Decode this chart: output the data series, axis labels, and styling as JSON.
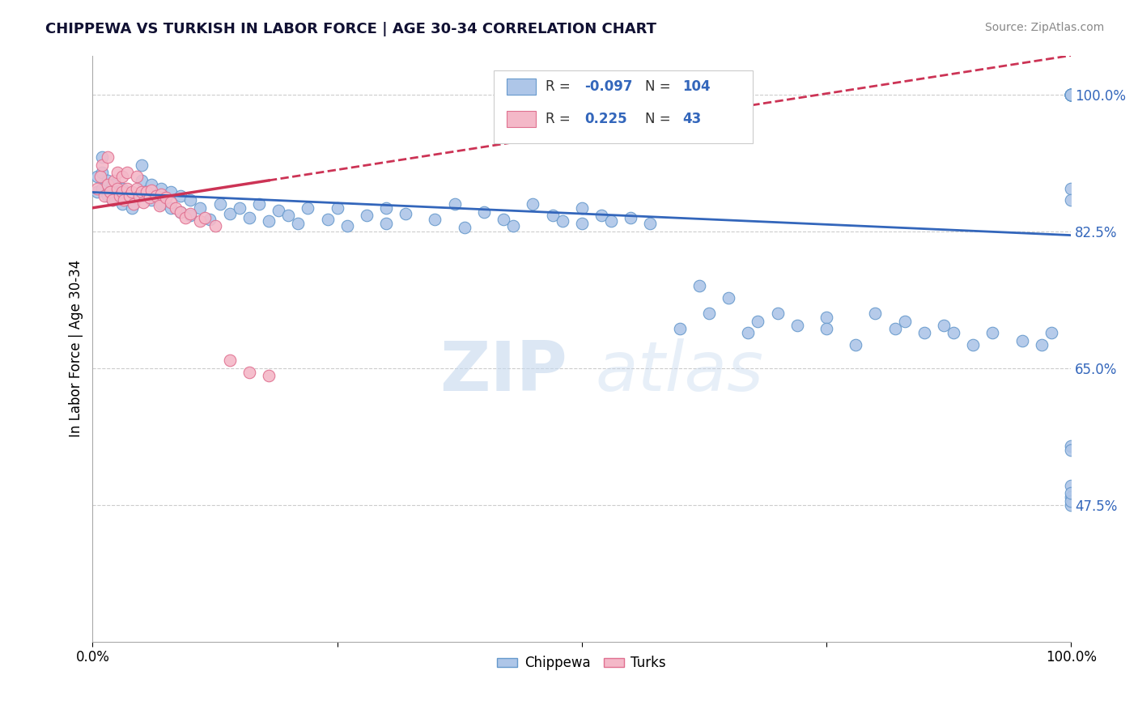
{
  "title": "CHIPPEWA VS TURKISH IN LABOR FORCE | AGE 30-34 CORRELATION CHART",
  "source_text": "Source: ZipAtlas.com",
  "ylabel": "In Labor Force | Age 30-34",
  "legend_r": [
    -0.097,
    0.225
  ],
  "legend_n": [
    104,
    43
  ],
  "xlim": [
    0.0,
    1.0
  ],
  "ylim": [
    0.3,
    1.05
  ],
  "yticks": [
    0.475,
    0.65,
    0.825,
    1.0
  ],
  "ytick_labels": [
    "47.5%",
    "65.0%",
    "82.5%",
    "100.0%"
  ],
  "xticks": [
    0.0,
    0.25,
    0.5,
    0.75,
    1.0
  ],
  "blue_color": "#aec6e8",
  "blue_edge": "#6699cc",
  "pink_color": "#f4b8c8",
  "pink_edge": "#e07090",
  "trend_blue": "#3366bb",
  "trend_pink": "#cc3355",
  "watermark_zip": "ZIP",
  "watermark_atlas": "atlas",
  "chippewa_x": [
    0.005,
    0.005,
    0.01,
    0.01,
    0.01,
    0.015,
    0.015,
    0.02,
    0.02,
    0.025,
    0.03,
    0.03,
    0.04,
    0.05,
    0.05,
    0.05,
    0.06,
    0.06,
    0.07,
    0.07,
    0.08,
    0.08,
    0.09,
    0.09,
    0.1,
    0.1,
    0.11,
    0.12,
    0.13,
    0.14,
    0.15,
    0.16,
    0.17,
    0.18,
    0.19,
    0.2,
    0.21,
    0.22,
    0.24,
    0.25,
    0.26,
    0.28,
    0.3,
    0.3,
    0.32,
    0.35,
    0.37,
    0.38,
    0.4,
    0.42,
    0.43,
    0.45,
    0.47,
    0.48,
    0.5,
    0.5,
    0.52,
    0.53,
    0.55,
    0.57,
    0.6,
    0.62,
    0.63,
    0.65,
    0.67,
    0.68,
    0.7,
    0.72,
    0.75,
    0.75,
    0.78,
    0.8,
    0.82,
    0.83,
    0.85,
    0.87,
    0.88,
    0.9,
    0.92,
    0.95,
    0.97,
    0.98,
    1.0,
    1.0,
    1.0,
    1.0,
    1.0,
    1.0,
    1.0,
    1.0,
    1.0,
    1.0,
    1.0,
    1.0,
    1.0,
    1.0,
    1.0,
    1.0,
    1.0,
    1.0,
    1.0,
    1.0,
    1.0,
    1.0
  ],
  "chippewa_y": [
    0.875,
    0.895,
    0.88,
    0.9,
    0.92,
    0.87,
    0.89,
    0.865,
    0.885,
    0.875,
    0.86,
    0.88,
    0.855,
    0.87,
    0.89,
    0.91,
    0.865,
    0.885,
    0.86,
    0.88,
    0.855,
    0.875,
    0.85,
    0.87,
    0.845,
    0.865,
    0.855,
    0.84,
    0.86,
    0.848,
    0.855,
    0.842,
    0.86,
    0.838,
    0.852,
    0.845,
    0.835,
    0.855,
    0.84,
    0.855,
    0.832,
    0.845,
    0.855,
    0.835,
    0.848,
    0.84,
    0.86,
    0.83,
    0.85,
    0.84,
    0.832,
    0.86,
    0.845,
    0.838,
    0.835,
    0.855,
    0.845,
    0.838,
    0.842,
    0.835,
    0.7,
    0.755,
    0.72,
    0.74,
    0.695,
    0.71,
    0.72,
    0.705,
    0.715,
    0.7,
    0.68,
    0.72,
    0.7,
    0.71,
    0.695,
    0.705,
    0.695,
    0.68,
    0.695,
    0.685,
    0.68,
    0.695,
    1.0,
    1.0,
    1.0,
    1.0,
    1.0,
    1.0,
    1.0,
    1.0,
    1.0,
    1.0,
    1.0,
    1.0,
    1.0,
    0.88,
    0.865,
    0.55,
    0.545,
    0.5,
    0.485,
    0.475,
    0.48,
    0.49
  ],
  "turks_x": [
    0.005,
    0.008,
    0.01,
    0.012,
    0.015,
    0.015,
    0.018,
    0.02,
    0.022,
    0.025,
    0.025,
    0.028,
    0.03,
    0.03,
    0.032,
    0.035,
    0.035,
    0.038,
    0.04,
    0.042,
    0.045,
    0.045,
    0.048,
    0.05,
    0.052,
    0.055,
    0.058,
    0.06,
    0.065,
    0.068,
    0.07,
    0.075,
    0.08,
    0.085,
    0.09,
    0.095,
    0.1,
    0.11,
    0.115,
    0.125,
    0.14,
    0.16,
    0.18
  ],
  "turks_y": [
    0.88,
    0.895,
    0.91,
    0.87,
    0.885,
    0.92,
    0.875,
    0.865,
    0.89,
    0.88,
    0.9,
    0.87,
    0.875,
    0.895,
    0.865,
    0.88,
    0.9,
    0.87,
    0.875,
    0.86,
    0.88,
    0.895,
    0.87,
    0.875,
    0.862,
    0.875,
    0.868,
    0.878,
    0.87,
    0.858,
    0.872,
    0.868,
    0.862,
    0.855,
    0.85,
    0.842,
    0.848,
    0.838,
    0.842,
    0.832,
    0.66,
    0.645,
    0.64
  ],
  "trend_blue_x0": 0.0,
  "trend_blue_y0": 0.875,
  "trend_blue_x1": 1.0,
  "trend_blue_y1": 0.82,
  "trend_pink_x0": 0.0,
  "trend_pink_y0": 0.855,
  "trend_pink_x1": 1.0,
  "trend_pink_y1": 1.05,
  "trend_pink_solid_end": 0.18
}
